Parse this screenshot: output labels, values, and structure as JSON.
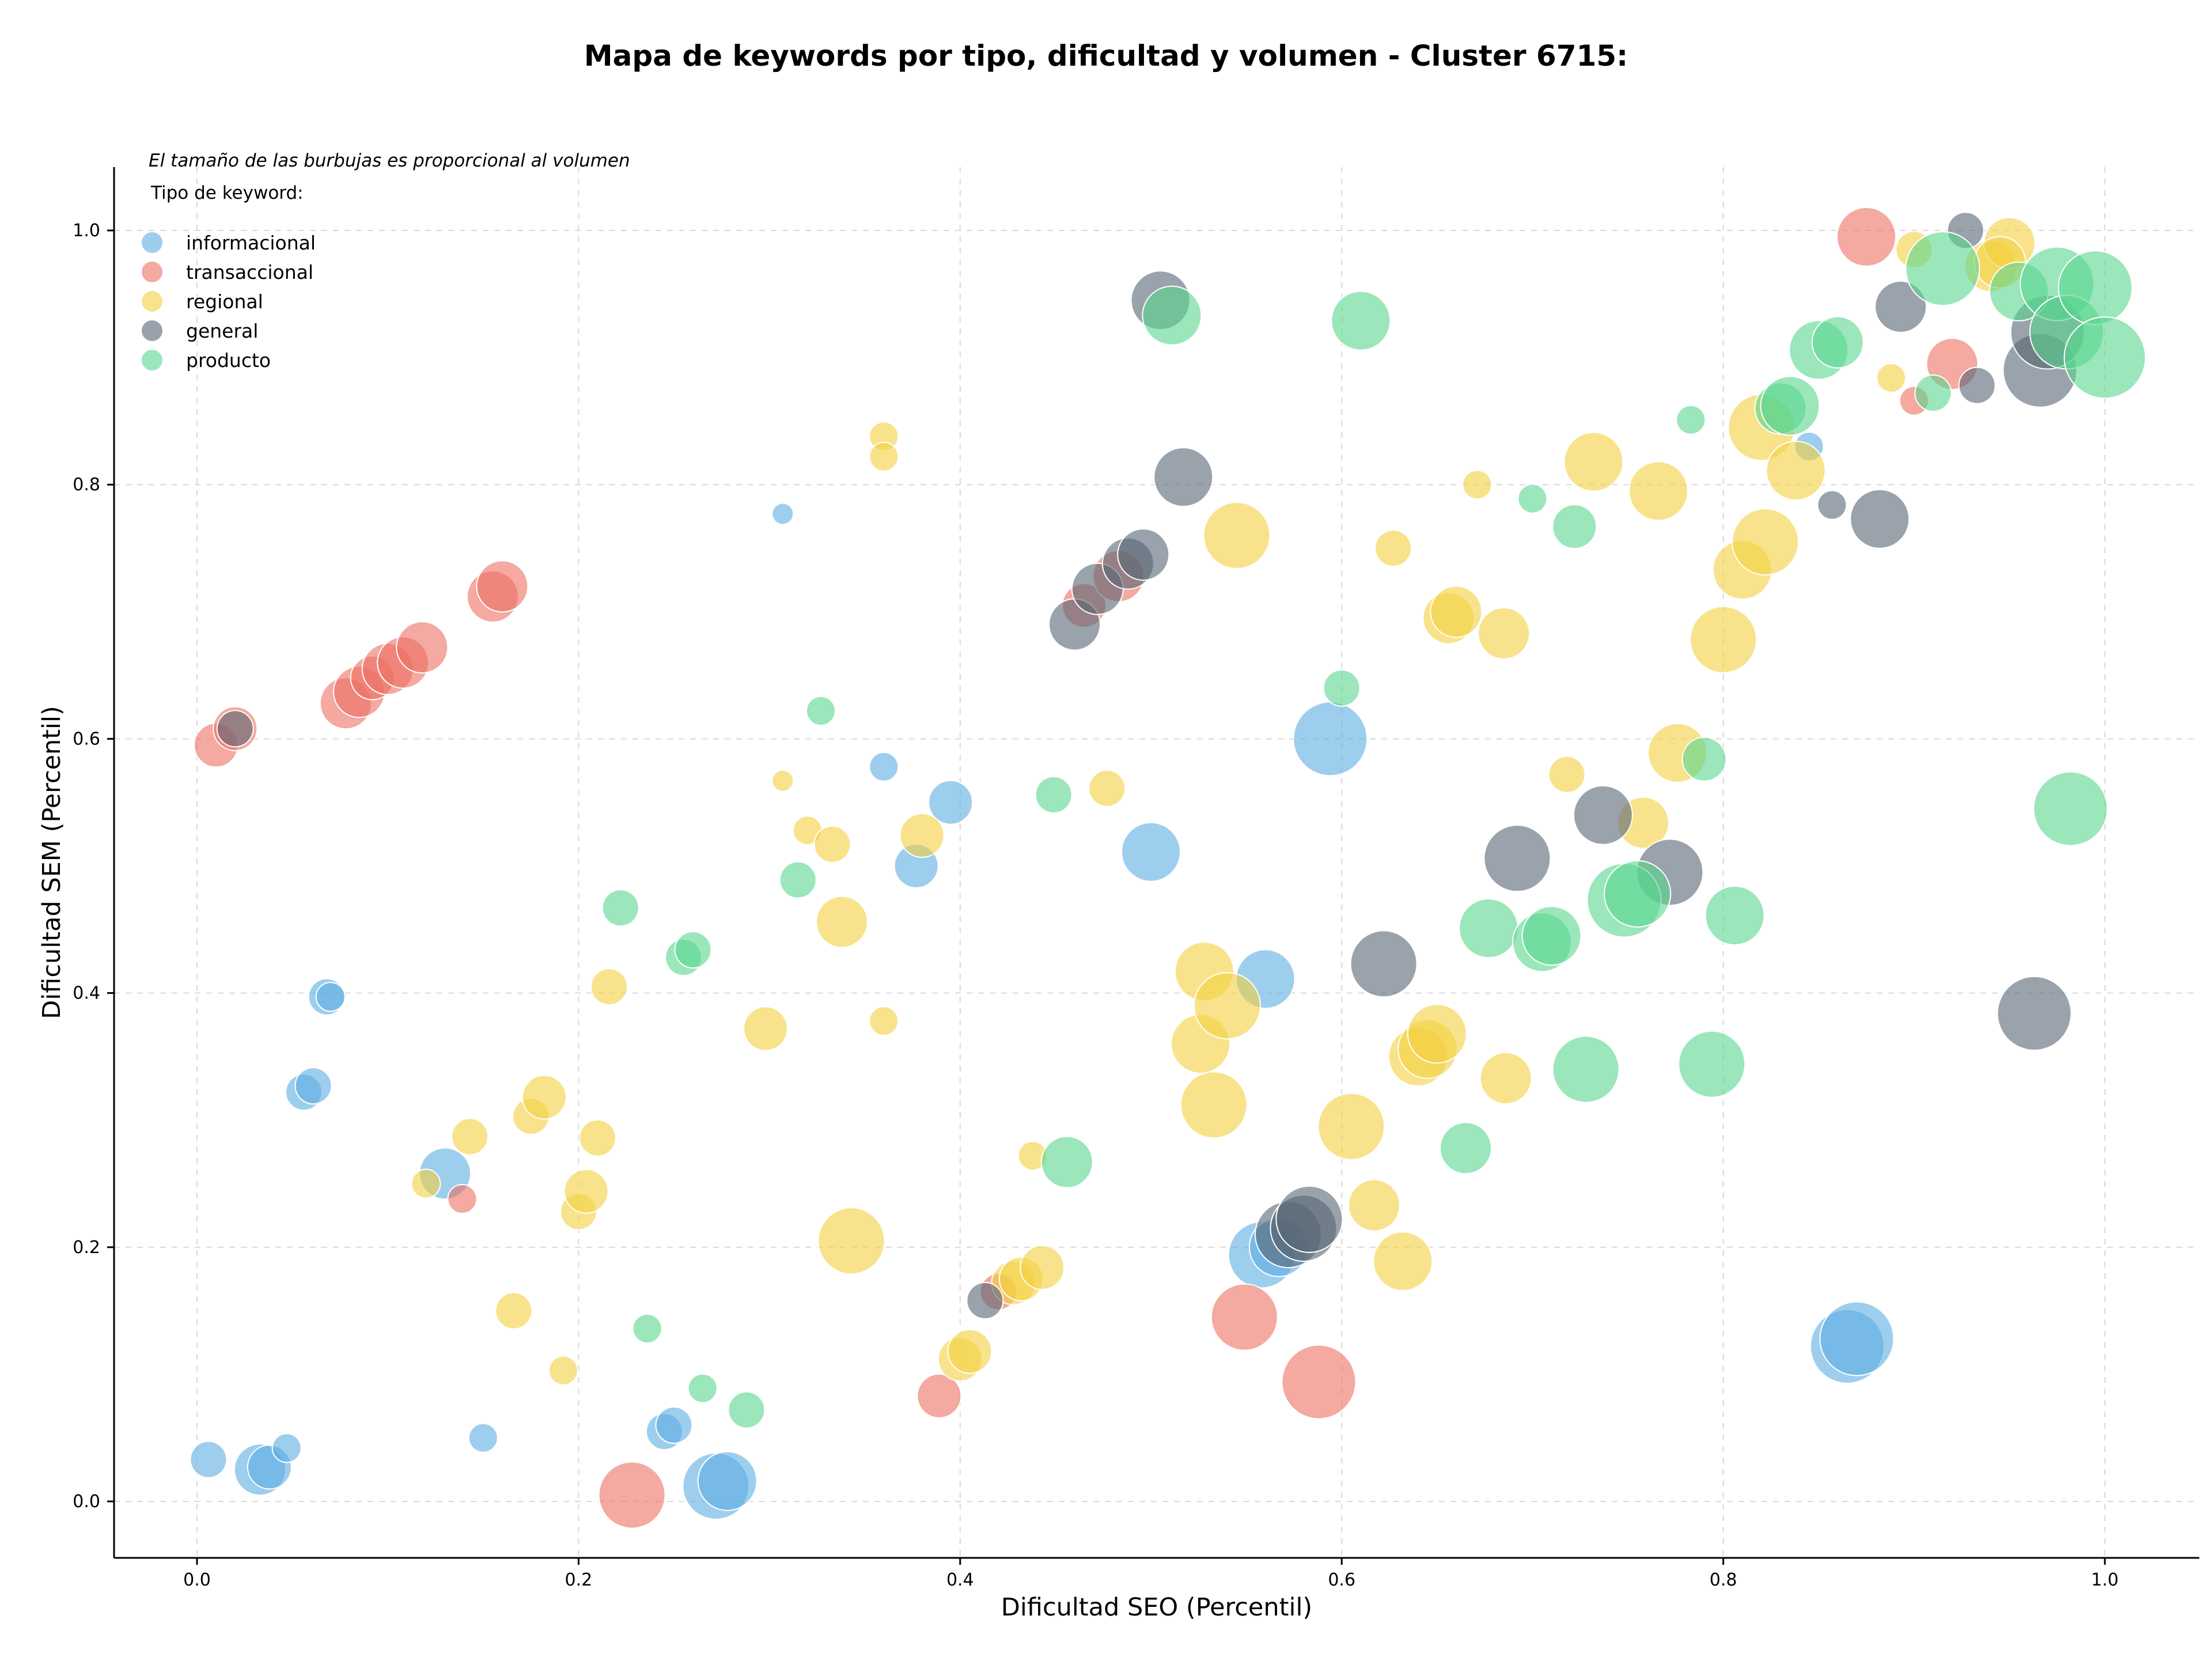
{
  "chart_data": {
    "type": "scatter",
    "title": "Mapa de keywords por tipo, dificultad y volumen - Cluster 6715:",
    "xlabel": "Dificultad SEO (Percentil)",
    "ylabel": "Dificultad SEM (Percentil)",
    "xlim": [
      -0.045,
      1.05
    ],
    "ylim": [
      -0.045,
      1.05
    ],
    "xticks": [
      "0.0",
      "0.2",
      "0.4",
      "0.6",
      "0.8",
      "1.0"
    ],
    "yticks": [
      "0.0",
      "0.2",
      "0.4",
      "0.6",
      "0.8",
      "1.0"
    ],
    "grid": true,
    "note": "El tamaño de las burbujas es proporcional al volumen",
    "legend_title": "Tipo de keyword:",
    "legend_position": "top-left",
    "bubble_size_meaning": "volumen (relative scale 1-10)",
    "series": [
      {
        "name": "informacional",
        "color": "#5dade2",
        "points": [
          [
            0.006,
            0.033,
            3
          ],
          [
            0.033,
            0.025,
            5
          ],
          [
            0.038,
            0.027,
            4
          ],
          [
            0.047,
            0.042,
            2
          ],
          [
            0.056,
            0.322,
            3
          ],
          [
            0.061,
            0.327,
            3
          ],
          [
            0.068,
            0.397,
            3
          ],
          [
            0.07,
            0.397,
            2
          ],
          [
            0.13,
            0.258,
            5
          ],
          [
            0.15,
            0.05,
            2
          ],
          [
            0.245,
            0.055,
            3
          ],
          [
            0.25,
            0.06,
            3
          ],
          [
            0.272,
            0.012,
            7
          ],
          [
            0.278,
            0.016,
            6
          ],
          [
            0.307,
            0.777,
            1
          ],
          [
            0.36,
            0.578,
            2
          ],
          [
            0.377,
            0.5,
            4
          ],
          [
            0.395,
            0.55,
            4
          ],
          [
            0.5,
            0.511,
            6
          ],
          [
            0.56,
            0.411,
            6
          ],
          [
            0.594,
            0.6,
            8
          ],
          [
            0.558,
            0.194,
            7
          ],
          [
            0.567,
            0.2,
            6
          ],
          [
            0.865,
            0.122,
            8
          ],
          [
            0.87,
            0.128,
            8
          ],
          [
            0.845,
            0.83,
            2
          ]
        ]
      },
      {
        "name": "transaccional",
        "color": "#ec7063",
        "points": [
          [
            0.01,
            0.595,
            4
          ],
          [
            0.02,
            0.608,
            4
          ],
          [
            0.078,
            0.628,
            5
          ],
          [
            0.085,
            0.637,
            5
          ],
          [
            0.092,
            0.648,
            4
          ],
          [
            0.1,
            0.655,
            5
          ],
          [
            0.108,
            0.66,
            5
          ],
          [
            0.118,
            0.672,
            5
          ],
          [
            0.155,
            0.712,
            5
          ],
          [
            0.16,
            0.72,
            5
          ],
          [
            0.139,
            0.238,
            2
          ],
          [
            0.228,
            0.005,
            7
          ],
          [
            0.389,
            0.083,
            4
          ],
          [
            0.42,
            0.165,
            3
          ],
          [
            0.465,
            0.705,
            4
          ],
          [
            0.483,
            0.728,
            5
          ],
          [
            0.549,
            0.145,
            7
          ],
          [
            0.588,
            0.094,
            8
          ],
          [
            0.875,
            0.995,
            6
          ],
          [
            0.92,
            0.895,
            5
          ],
          [
            0.9,
            0.866,
            2
          ]
        ]
      },
      {
        "name": "regional",
        "color": "#f4d03f",
        "points": [
          [
            0.12,
            0.25,
            2
          ],
          [
            0.143,
            0.287,
            3
          ],
          [
            0.166,
            0.15,
            3
          ],
          [
            0.175,
            0.303,
            3
          ],
          [
            0.182,
            0.318,
            4
          ],
          [
            0.192,
            0.103,
            2
          ],
          [
            0.2,
            0.228,
            3
          ],
          [
            0.204,
            0.244,
            4
          ],
          [
            0.21,
            0.286,
            3
          ],
          [
            0.216,
            0.405,
            3
          ],
          [
            0.298,
            0.372,
            4
          ],
          [
            0.307,
            0.567,
            1
          ],
          [
            0.32,
            0.528,
            2
          ],
          [
            0.333,
            0.517,
            3
          ],
          [
            0.338,
            0.456,
            5
          ],
          [
            0.343,
            0.205,
            7
          ],
          [
            0.36,
            0.838,
            2
          ],
          [
            0.36,
            0.822,
            2
          ],
          [
            0.36,
            0.378,
            2
          ],
          [
            0.38,
            0.524,
            4
          ],
          [
            0.4,
            0.112,
            4
          ],
          [
            0.405,
            0.118,
            4
          ],
          [
            0.428,
            0.172,
            4
          ],
          [
            0.432,
            0.175,
            4
          ],
          [
            0.438,
            0.272,
            2
          ],
          [
            0.443,
            0.184,
            4
          ],
          [
            0.477,
            0.561,
            3
          ],
          [
            0.526,
            0.36,
            6
          ],
          [
            0.528,
            0.417,
            6
          ],
          [
            0.533,
            0.312,
            7
          ],
          [
            0.54,
            0.39,
            7
          ],
          [
            0.545,
            0.76,
            7
          ],
          [
            0.605,
            0.295,
            7
          ],
          [
            0.627,
            0.75,
            3
          ],
          [
            0.617,
            0.233,
            5
          ],
          [
            0.632,
            0.189,
            6
          ],
          [
            0.64,
            0.35,
            6
          ],
          [
            0.645,
            0.356,
            6
          ],
          [
            0.65,
            0.368,
            6
          ],
          [
            0.656,
            0.695,
            5
          ],
          [
            0.66,
            0.7,
            5
          ],
          [
            0.671,
            0.8,
            2
          ],
          [
            0.685,
            0.683,
            5
          ],
          [
            0.686,
            0.333,
            5
          ],
          [
            0.718,
            0.572,
            3
          ],
          [
            0.732,
            0.818,
            6
          ],
          [
            0.758,
            0.534,
            5
          ],
          [
            0.766,
            0.795,
            6
          ],
          [
            0.776,
            0.589,
            6
          ],
          [
            0.8,
            0.678,
            7
          ],
          [
            0.81,
            0.733,
            6
          ],
          [
            0.82,
            0.845,
            7
          ],
          [
            0.822,
            0.755,
            7
          ],
          [
            0.838,
            0.811,
            6
          ],
          [
            0.888,
            0.884,
            2
          ],
          [
            0.9,
            0.985,
            3
          ],
          [
            0.94,
            0.972,
            5
          ],
          [
            0.95,
            0.99,
            5
          ],
          [
            0.945,
            0.975,
            5
          ]
        ]
      },
      {
        "name": "general",
        "color": "#566573",
        "points": [
          [
            0.02,
            0.608,
            3
          ],
          [
            0.413,
            0.158,
            3
          ],
          [
            0.46,
            0.69,
            5
          ],
          [
            0.472,
            0.718,
            5
          ],
          [
            0.488,
            0.738,
            5
          ],
          [
            0.496,
            0.745,
            5
          ],
          [
            0.505,
            0.945,
            6
          ],
          [
            0.517,
            0.806,
            6
          ],
          [
            0.572,
            0.21,
            7
          ],
          [
            0.58,
            0.215,
            7
          ],
          [
            0.583,
            0.222,
            7
          ],
          [
            0.622,
            0.423,
            7
          ],
          [
            0.692,
            0.506,
            7
          ],
          [
            0.737,
            0.54,
            6
          ],
          [
            0.772,
            0.495,
            7
          ],
          [
            0.857,
            0.784,
            2
          ],
          [
            0.882,
            0.773,
            6
          ],
          [
            0.893,
            0.94,
            5
          ],
          [
            0.927,
            1.0,
            3
          ],
          [
            0.933,
            0.878,
            3
          ],
          [
            0.963,
            0.384,
            8
          ],
          [
            0.966,
            0.89,
            8
          ],
          [
            0.97,
            0.92,
            8
          ]
        ]
      },
      {
        "name": "producto",
        "color": "#58d68d",
        "points": [
          [
            0.222,
            0.467,
            3
          ],
          [
            0.255,
            0.428,
            3
          ],
          [
            0.26,
            0.434,
            3
          ],
          [
            0.236,
            0.136,
            2
          ],
          [
            0.265,
            0.089,
            2
          ],
          [
            0.288,
            0.072,
            3
          ],
          [
            0.315,
            0.489,
            3
          ],
          [
            0.327,
            0.622,
            2
          ],
          [
            0.449,
            0.556,
            3
          ],
          [
            0.456,
            0.267,
            5
          ],
          [
            0.511,
            0.933,
            6
          ],
          [
            0.6,
            0.64,
            3
          ],
          [
            0.61,
            0.929,
            6
          ],
          [
            0.665,
            0.278,
            5
          ],
          [
            0.677,
            0.451,
            6
          ],
          [
            0.7,
            0.789,
            2
          ],
          [
            0.705,
            0.44,
            6
          ],
          [
            0.71,
            0.445,
            6
          ],
          [
            0.722,
            0.767,
            4
          ],
          [
            0.728,
            0.34,
            7
          ],
          [
            0.748,
            0.473,
            8
          ],
          [
            0.755,
            0.478,
            7
          ],
          [
            0.783,
            0.851,
            2
          ],
          [
            0.79,
            0.584,
            4
          ],
          [
            0.794,
            0.344,
            7
          ],
          [
            0.806,
            0.461,
            6
          ],
          [
            0.83,
            0.86,
            5
          ],
          [
            0.835,
            0.862,
            6
          ],
          [
            0.85,
            0.906,
            6
          ],
          [
            0.86,
            0.912,
            5
          ],
          [
            0.91,
            0.872,
            3
          ],
          [
            0.915,
            0.97,
            8
          ],
          [
            0.955,
            0.952,
            6
          ],
          [
            0.975,
            0.958,
            8
          ],
          [
            0.982,
            0.545,
            8
          ],
          [
            0.98,
            0.92,
            8
          ],
          [
            0.995,
            0.955,
            8
          ],
          [
            1.0,
            0.9,
            9
          ]
        ]
      }
    ]
  }
}
